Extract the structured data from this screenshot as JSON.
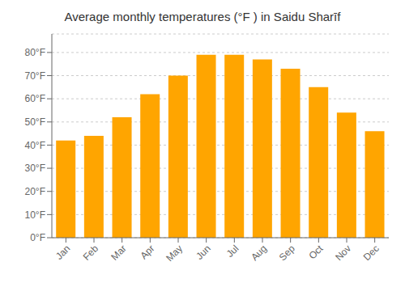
{
  "chart_data": {
    "type": "bar",
    "title": "Average monthly temperatures (°F ) in Saidu Sharīf",
    "categories": [
      "Jan",
      "Feb",
      "Mar",
      "Apr",
      "May",
      "Jun",
      "Jul",
      "Aug",
      "Sep",
      "Oct",
      "Nov",
      "Dec"
    ],
    "values": [
      42,
      44,
      52,
      62,
      70,
      79,
      79,
      77,
      73,
      65,
      54,
      46
    ],
    "color": "#FFA500",
    "ylim": [
      0,
      88
    ],
    "yticks": [
      {
        "value": 0,
        "label": "0°F"
      },
      {
        "value": 10,
        "label": "10°F"
      },
      {
        "value": 20,
        "label": "20°F"
      },
      {
        "value": 30,
        "label": "30°F"
      },
      {
        "value": 40,
        "label": "40°F"
      },
      {
        "value": 50,
        "label": "50°F"
      },
      {
        "value": 60,
        "label": "60°F"
      },
      {
        "value": 70,
        "label": "70°F"
      },
      {
        "value": 80,
        "label": "80°F"
      }
    ],
    "grid": true
  }
}
